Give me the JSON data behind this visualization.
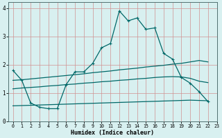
{
  "xlabel": "Humidex (Indice chaleur)",
  "xlim": [
    -0.5,
    23
  ],
  "ylim": [
    0,
    4.2
  ],
  "xticks": [
    0,
    1,
    2,
    3,
    4,
    5,
    6,
    7,
    8,
    9,
    10,
    11,
    12,
    13,
    14,
    15,
    16,
    17,
    18,
    19,
    20,
    21,
    22,
    23
  ],
  "yticks": [
    0,
    1,
    2,
    3,
    4
  ],
  "bg_color": "#d8f0f0",
  "grid_color": "#d09090",
  "line_color": "#006868",
  "line1_x": [
    0,
    1,
    2,
    3,
    4,
    5,
    6,
    7,
    8,
    9,
    10,
    11,
    12,
    13,
    14,
    15,
    16,
    17,
    18,
    19,
    20,
    21,
    22
  ],
  "line1_y": [
    1.8,
    1.45,
    0.65,
    0.5,
    0.45,
    0.45,
    1.3,
    1.75,
    1.75,
    2.05,
    2.6,
    2.75,
    3.9,
    3.55,
    3.65,
    3.25,
    3.3,
    2.4,
    2.2,
    1.55,
    1.35,
    1.05,
    0.7
  ],
  "line2_x": [
    0,
    1,
    2,
    3,
    4,
    5,
    6,
    7,
    8,
    9,
    10,
    11,
    12,
    13,
    14,
    15,
    16,
    17,
    18,
    19,
    20,
    21,
    22
  ],
  "line2_y": [
    1.45,
    1.47,
    1.5,
    1.53,
    1.56,
    1.59,
    1.62,
    1.65,
    1.68,
    1.72,
    1.75,
    1.78,
    1.82,
    1.85,
    1.88,
    1.92,
    1.95,
    1.98,
    2.02,
    2.05,
    2.1,
    2.15,
    2.1
  ],
  "line3_x": [
    0,
    1,
    2,
    3,
    4,
    5,
    6,
    7,
    8,
    9,
    10,
    11,
    12,
    13,
    14,
    15,
    16,
    17,
    18,
    19,
    20,
    21,
    22
  ],
  "line3_y": [
    1.15,
    1.18,
    1.2,
    1.22,
    1.25,
    1.27,
    1.3,
    1.32,
    1.35,
    1.37,
    1.4,
    1.42,
    1.45,
    1.47,
    1.5,
    1.52,
    1.55,
    1.57,
    1.58,
    1.57,
    1.52,
    1.42,
    1.37
  ],
  "line4_x": [
    0,
    1,
    2,
    3,
    4,
    5,
    6,
    7,
    8,
    9,
    10,
    11,
    12,
    13,
    14,
    15,
    16,
    17,
    18,
    19,
    20,
    21,
    22
  ],
  "line4_y": [
    0.55,
    0.56,
    0.57,
    0.58,
    0.59,
    0.6,
    0.61,
    0.62,
    0.63,
    0.64,
    0.65,
    0.66,
    0.67,
    0.68,
    0.69,
    0.7,
    0.71,
    0.72,
    0.73,
    0.74,
    0.75,
    0.74,
    0.73
  ]
}
